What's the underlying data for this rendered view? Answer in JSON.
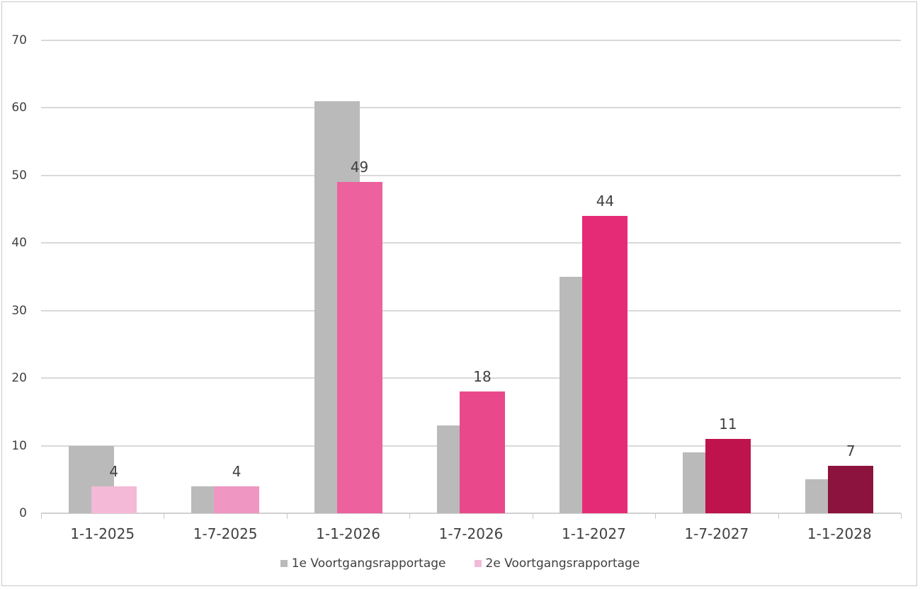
{
  "chart_data": {
    "type": "bar",
    "title": "",
    "xlabel": "",
    "ylabel": "",
    "ylim": [
      0,
      70
    ],
    "yticks": [
      0,
      10,
      20,
      30,
      40,
      50,
      60,
      70
    ],
    "grid": true,
    "legend_position": "bottom",
    "categories": [
      "1-1-2025",
      "1-7-2025",
      "1-1-2026",
      "1-7-2026",
      "1-1-2027",
      "1-7-2027",
      "1-1-2028"
    ],
    "series": [
      {
        "name": "1e Voortgangsrapportage",
        "values": [
          10,
          4,
          61,
          13,
          35,
          9,
          5
        ],
        "color": "#bababa",
        "data_labels": false
      },
      {
        "name": "2e Voortgangsrapportage",
        "values": [
          4,
          4,
          49,
          18,
          44,
          11,
          7
        ],
        "colors": [
          "#f4b9d7",
          "#f096c2",
          "#ec619e",
          "#e9498a",
          "#e62b76",
          "#be134c",
          "#8c133d"
        ],
        "legend_color": "#f4b9d7",
        "data_labels": true
      }
    ]
  },
  "legend": {
    "items": [
      {
        "label": "1e Voortgangsrapportage",
        "color": "#bababa"
      },
      {
        "label": "2e Voortgangsrapportage",
        "color": "#f4b9d7"
      }
    ]
  },
  "axis": {
    "y_labels": [
      "0",
      "10",
      "20",
      "30",
      "40",
      "50",
      "60",
      "70"
    ]
  }
}
